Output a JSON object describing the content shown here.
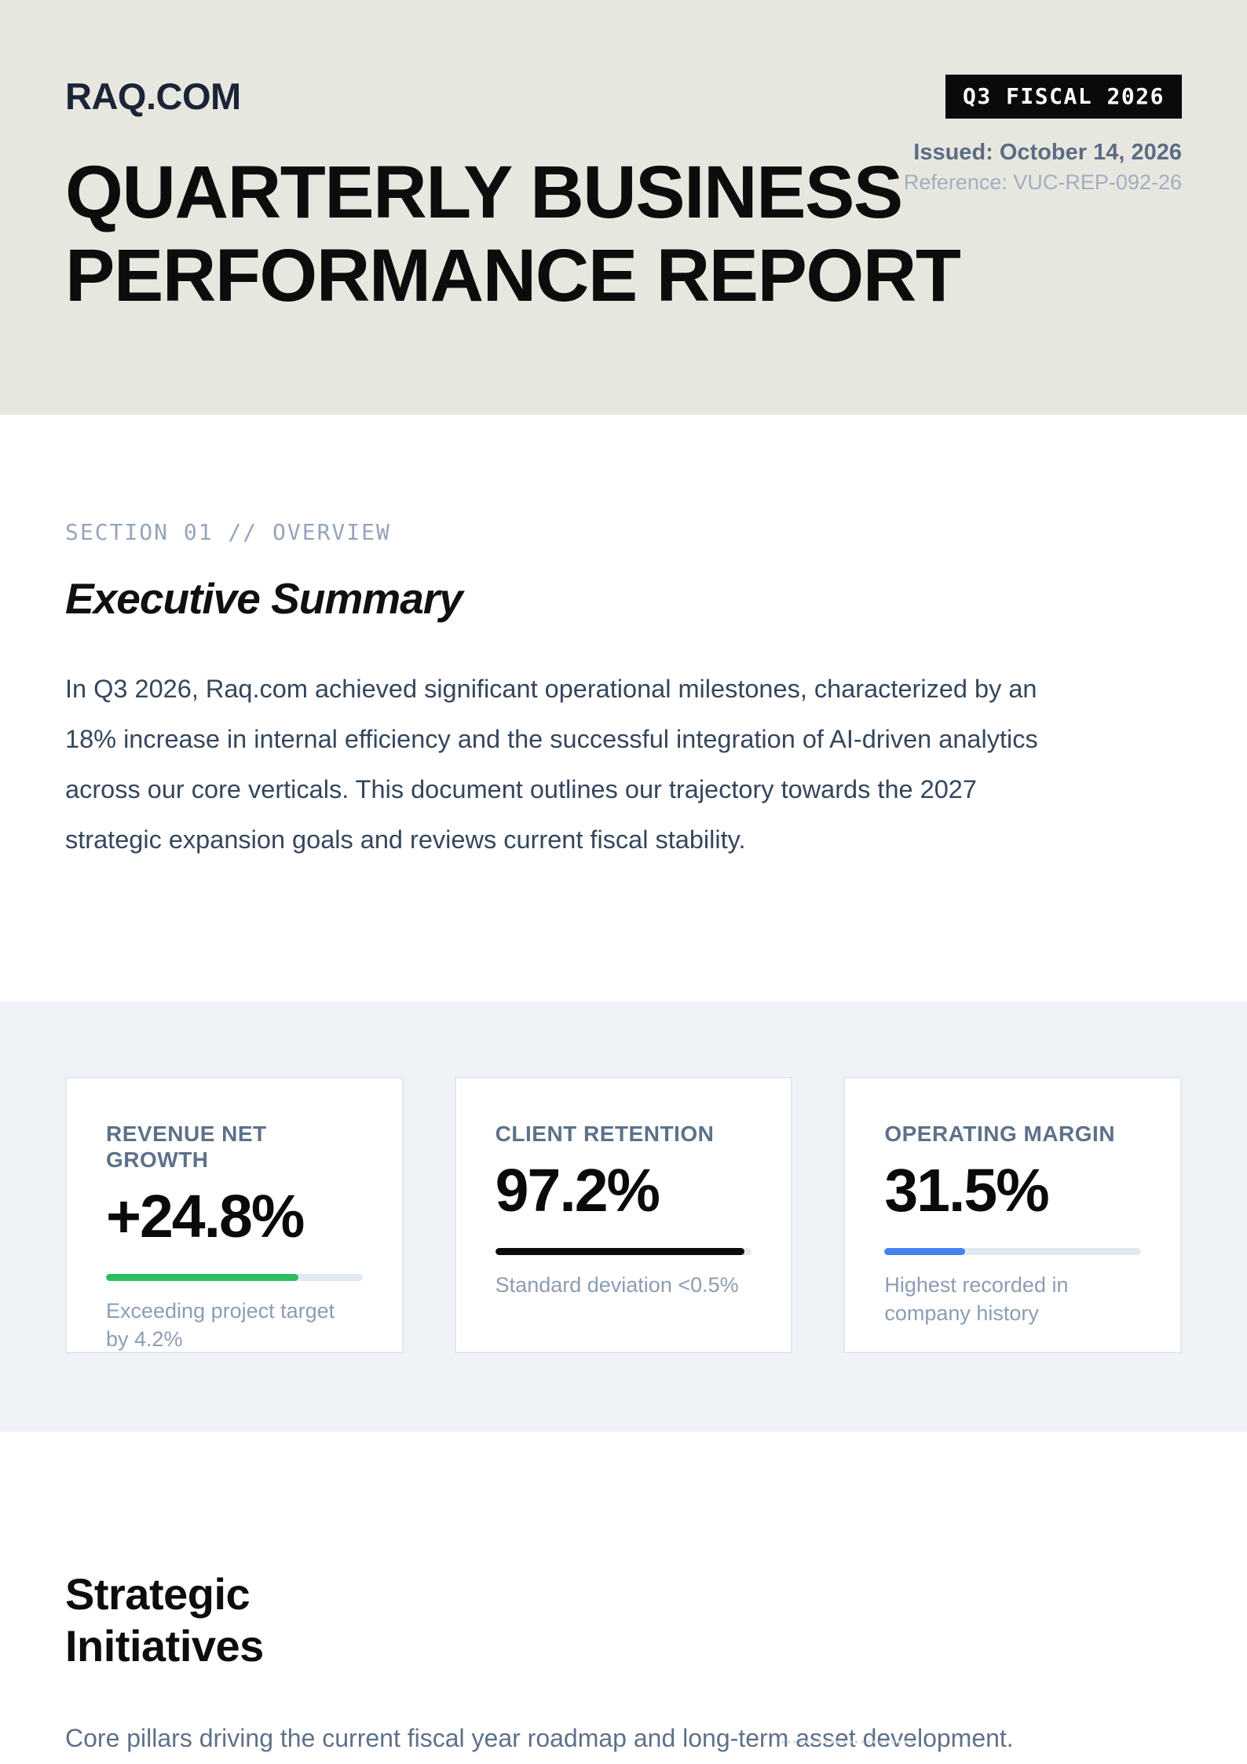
{
  "header": {
    "logo": "RAQ.COM",
    "badge": "Q3 FISCAL 2026",
    "issued": "Issued: October 14, 2026",
    "reference": "Reference: VUC-REP-092-26",
    "title": "QUARTERLY BUSINESS PERFORMANCE REPORT"
  },
  "overview": {
    "section_label": "SECTION 01 // OVERVIEW",
    "heading": "Executive Summary",
    "paragraph": "In Q3 2026, Raq.com achieved significant operational milestones, characterized by an 18% increase in internal efficiency and the successful integration of AI-driven analytics across our core verticals. This document outlines our trajectory towards the 2027 strategic expansion goals and reviews current fiscal stability."
  },
  "metrics": {
    "cards": [
      {
        "label": "REVENUE NET GROWTH",
        "value": "+24.8%",
        "progress_percent": 75,
        "bar_color": "#2EBD5E",
        "note": "Exceeding project target by 4.2%"
      },
      {
        "label": "CLIENT RETENTION",
        "value": "97.2%",
        "progress_percent": 97.2,
        "bar_color": "#0B0B0B",
        "note": "Standard deviation <0.5%"
      },
      {
        "label": "OPERATING MARGIN",
        "value": "31.5%",
        "progress_percent": 31.5,
        "bar_color": "#4583F0",
        "note": "Highest recorded in company history"
      }
    ]
  },
  "initiatives": {
    "heading": "Strategic Initiatives",
    "subtitle": "Core pillars driving the current fiscal year roadmap and long-term asset development."
  },
  "colors": {
    "header_background": "#E8E7DF",
    "metrics_background": "#EFF2F7",
    "body_text": "#35465C",
    "muted_text": "#8C9DB3",
    "badge_background": "#0A0A0A",
    "growth_green": "#2EBD5E",
    "retention_black": "#0B0B0B",
    "margin_blue": "#4583F0"
  }
}
